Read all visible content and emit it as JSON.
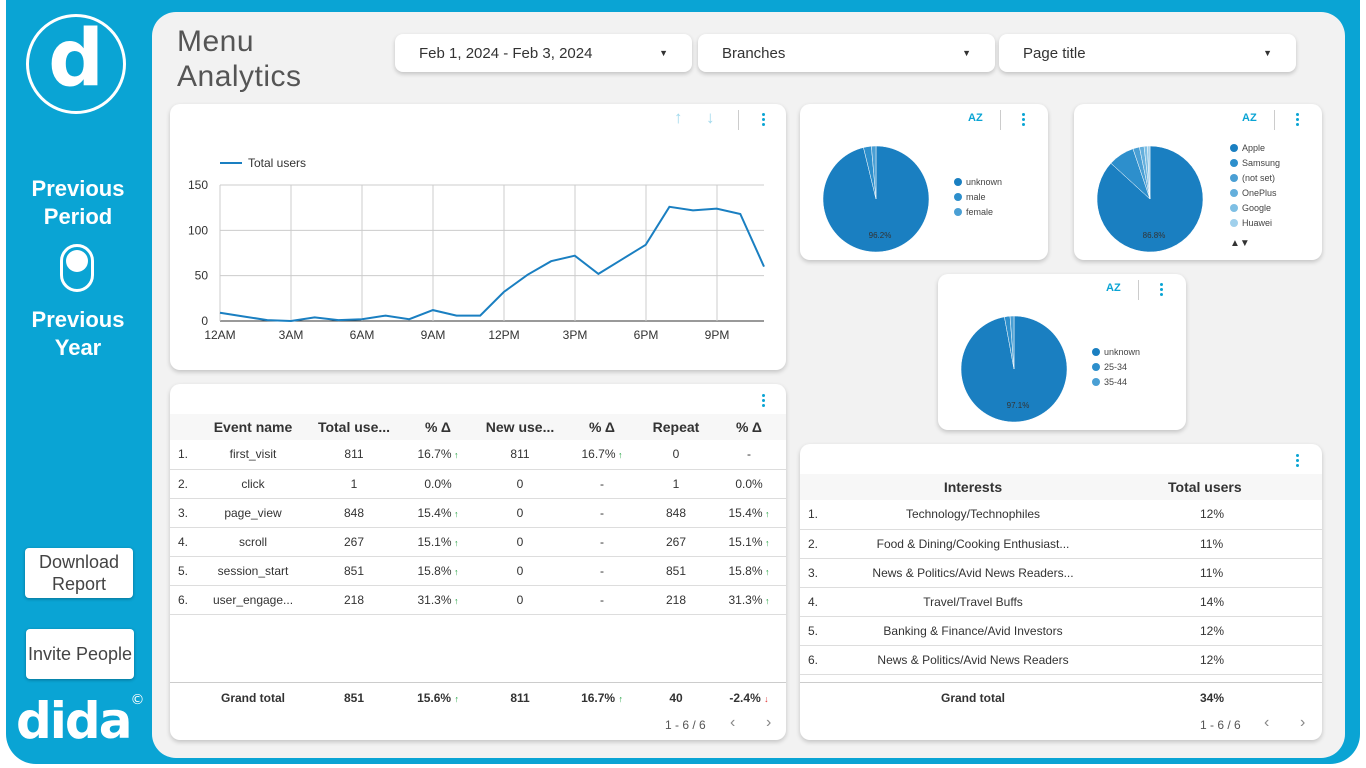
{
  "sidebar": {
    "logo_letter": "d",
    "previous_period": "Previous Period",
    "previous_year": "Previous Year",
    "download_report": "Download Report",
    "invite_people": "Invite People",
    "brand": "dida",
    "brand_mark": "©"
  },
  "header": {
    "title_line1": "Menu",
    "title_line2": "Analytics",
    "date_range": "Feb 1, 2024 - Feb 3, 2024",
    "branches": "Branches",
    "page_title": "Page title"
  },
  "line_chart": {
    "chart_data": {
      "type": "line",
      "series": [
        {
          "name": "Total users",
          "values": [
            9,
            5,
            1,
            0,
            4,
            1,
            2,
            6,
            2,
            12,
            6,
            6,
            32,
            51,
            66,
            72,
            52,
            68,
            84,
            126,
            122,
            124,
            118,
            60
          ]
        }
      ],
      "x_tick_labels": [
        "12AM",
        "3AM",
        "6AM",
        "9AM",
        "12PM",
        "3PM",
        "6PM",
        "9PM"
      ],
      "y_tick_labels": [
        "0",
        "50",
        "100",
        "150"
      ],
      "ylim": [
        0,
        150
      ],
      "grid": true,
      "legend": "top-left",
      "color": "#1a7fc1"
    }
  },
  "pie_gender": {
    "legend": [
      "unknown",
      "male",
      "female"
    ],
    "label": "96.2%",
    "chart_data": {
      "type": "pie",
      "categories": [
        "unknown",
        "male",
        "female"
      ],
      "values": [
        96.2,
        2.4,
        1.4
      ]
    }
  },
  "pie_device": {
    "legend": [
      "Apple",
      "Samsung",
      "(not set)",
      "OnePlus",
      "Google",
      "Huawei"
    ],
    "label": "86.8%",
    "chart_data": {
      "type": "pie",
      "categories": [
        "Apple",
        "Samsung",
        "(not set)",
        "OnePlus",
        "Google",
        "Huawei"
      ],
      "values": [
        86.8,
        8.0,
        2.0,
        1.4,
        1.0,
        0.8
      ]
    }
  },
  "pie_age": {
    "legend": [
      "unknown",
      "25-34",
      "35-44"
    ],
    "label": "97.1%",
    "chart_data": {
      "type": "pie",
      "categories": [
        "unknown",
        "25-34",
        "35-44"
      ],
      "values": [
        97.1,
        1.7,
        1.2
      ]
    }
  },
  "events_table": {
    "headers": [
      "Event name",
      "Total use...",
      "% Δ",
      "New use...",
      "% Δ",
      "Repeat",
      "% Δ"
    ],
    "rows": [
      {
        "idx": "1.",
        "name": "first_visit",
        "total": "811",
        "d1": "16.7%",
        "new": "811",
        "d2": "16.7%",
        "repeat": "0",
        "d3": "-"
      },
      {
        "idx": "2.",
        "name": "click",
        "total": "1",
        "d1": "0.0%",
        "new": "0",
        "d2": "-",
        "repeat": "1",
        "d3": "0.0%"
      },
      {
        "idx": "3.",
        "name": "page_view",
        "total": "848",
        "d1": "15.4%",
        "new": "0",
        "d2": "-",
        "repeat": "848",
        "d3": "15.4%"
      },
      {
        "idx": "4.",
        "name": "scroll",
        "total": "267",
        "d1": "15.1%",
        "new": "0",
        "d2": "-",
        "repeat": "267",
        "d3": "15.1%"
      },
      {
        "idx": "5.",
        "name": "session_start",
        "total": "851",
        "d1": "15.8%",
        "new": "0",
        "d2": "-",
        "repeat": "851",
        "d3": "15.8%"
      },
      {
        "idx": "6.",
        "name": "user_engage...",
        "total": "218",
        "d1": "31.3%",
        "new": "0",
        "d2": "-",
        "repeat": "218",
        "d3": "31.3%"
      }
    ],
    "total": {
      "label": "Grand total",
      "total": "851",
      "d1": "15.6%",
      "new": "811",
      "d2": "16.7%",
      "repeat": "40",
      "d3": "-2.4%"
    },
    "pager": "1 - 6 / 6"
  },
  "interests_table": {
    "headers": [
      "Interests",
      "Total users"
    ],
    "rows": [
      {
        "idx": "1.",
        "name": "Technology/Technophiles",
        "value": "12%"
      },
      {
        "idx": "2.",
        "name": "Food & Dining/Cooking Enthusiast...",
        "value": "11%"
      },
      {
        "idx": "3.",
        "name": "News & Politics/Avid News Readers...",
        "value": "11%"
      },
      {
        "idx": "4.",
        "name": "Travel/Travel Buffs",
        "value": "14%"
      },
      {
        "idx": "5.",
        "name": "Banking & Finance/Avid Investors",
        "value": "12%"
      },
      {
        "idx": "6.",
        "name": "News & Politics/Avid News Readers",
        "value": "12%"
      }
    ],
    "total": {
      "label": "Grand total",
      "value": "34%"
    },
    "pager": "1 - 6 / 6"
  },
  "icons": {
    "arrow_up": "↑",
    "arrow_down": "↓",
    "sort": "AZ",
    "prev": "‹",
    "next": "›",
    "caret": "▼",
    "trend_up": "↑",
    "trend_down": "↓",
    "legend_nav": "▲▼"
  },
  "colors": {
    "accent": "#0aa4d4",
    "pie_main": "#1a7fc1",
    "up": "#1a9e3a",
    "down": "#d33333"
  }
}
